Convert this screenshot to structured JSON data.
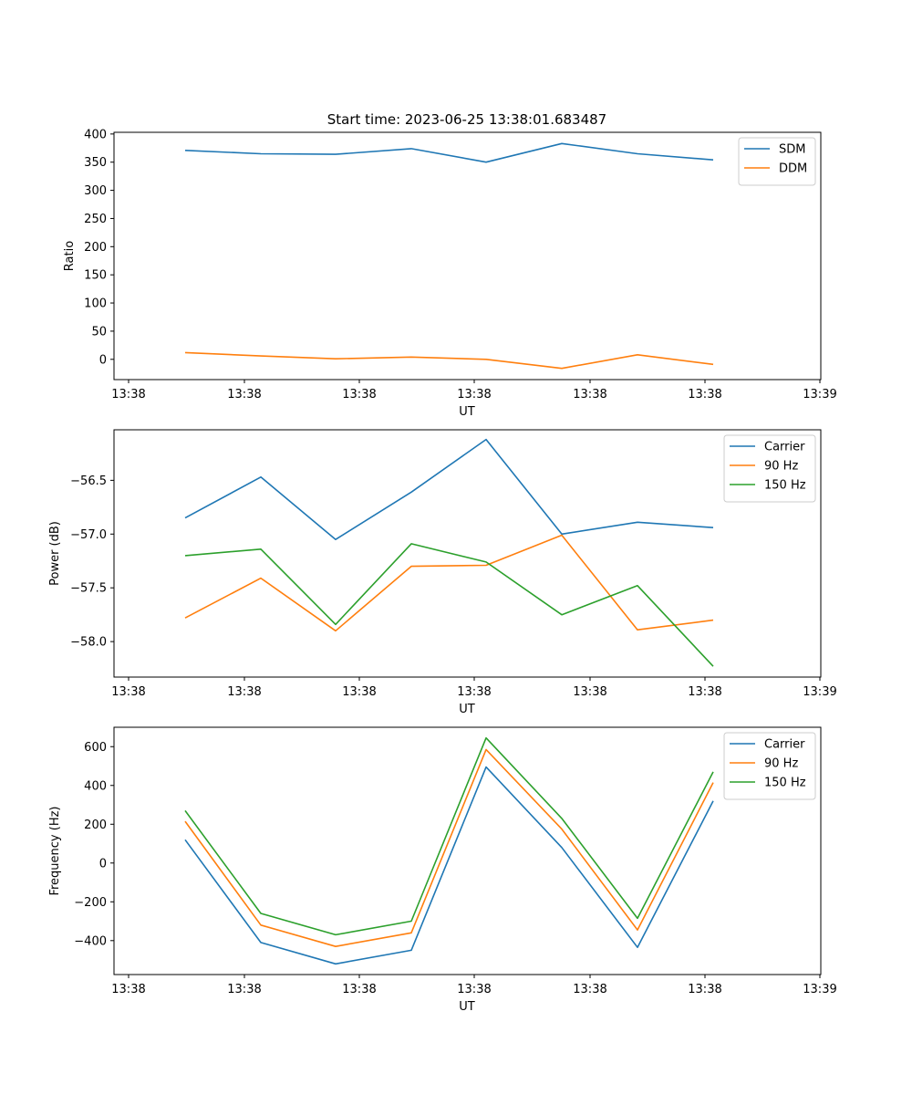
{
  "figure": {
    "suptitle": "Start time: 2023-06-25 13:38:01.683487"
  },
  "chart_data": [
    {
      "type": "line",
      "title": "",
      "xlabel": "UT",
      "ylabel": "Ratio",
      "x_tick_labels": [
        "13:38",
        "13:38",
        "13:38",
        "13:38",
        "13:38",
        "13:38",
        "13:39"
      ],
      "y_ticks": [
        0,
        50,
        100,
        150,
        200,
        250,
        300,
        350,
        400
      ],
      "y_tick_labels": [
        "0",
        "50",
        "100",
        "150",
        "200",
        "250",
        "300",
        "350",
        "400"
      ],
      "ylim": [
        -36,
        403
      ],
      "grid": false,
      "legend_position": "top-right",
      "series": [
        {
          "name": "SDM",
          "color": "#1f77b4",
          "values": [
            371,
            365,
            364,
            374,
            350,
            383,
            365,
            354
          ]
        },
        {
          "name": "DDM",
          "color": "#ff7f0e",
          "values": [
            12,
            6,
            1,
            4,
            0,
            -16,
            8,
            -9
          ]
        }
      ]
    },
    {
      "type": "line",
      "title": "",
      "xlabel": "UT",
      "ylabel": "Power (dB)",
      "x_tick_labels": [
        "13:38",
        "13:38",
        "13:38",
        "13:38",
        "13:38",
        "13:38",
        "13:39"
      ],
      "y_ticks": [
        -56.5,
        -57.0,
        -57.5,
        -58.0
      ],
      "y_tick_labels": [
        "−56.5",
        "−57.0",
        "−57.5",
        "−58.0"
      ],
      "ylim": [
        -58.33,
        -56.03
      ],
      "grid": false,
      "legend_position": "top-right",
      "series": [
        {
          "name": "Carrier",
          "color": "#1f77b4",
          "values": [
            -56.85,
            -56.47,
            -57.05,
            -56.61,
            -56.12,
            -57.0,
            -56.89,
            -56.94
          ]
        },
        {
          "name": "90 Hz",
          "color": "#ff7f0e",
          "values": [
            -57.78,
            -57.41,
            -57.9,
            -57.3,
            -57.29,
            -57.01,
            -57.89,
            -57.8
          ]
        },
        {
          "name": "150 Hz",
          "color": "#2ca02c",
          "values": [
            -57.2,
            -57.14,
            -57.84,
            -57.09,
            -57.26,
            -57.75,
            -57.48,
            -58.23
          ]
        }
      ]
    },
    {
      "type": "line",
      "title": "",
      "xlabel": "UT",
      "ylabel": "Frequency (Hz)",
      "x_tick_labels": [
        "13:38",
        "13:38",
        "13:38",
        "13:38",
        "13:38",
        "13:38",
        "13:39"
      ],
      "y_ticks": [
        600,
        400,
        200,
        0,
        -200,
        -400
      ],
      "y_tick_labels": [
        "600",
        "400",
        "200",
        "0",
        "−200",
        "−400"
      ],
      "ylim": [
        -575,
        700
      ],
      "grid": false,
      "legend_position": "top-right",
      "series": [
        {
          "name": "Carrier",
          "color": "#1f77b4",
          "values": [
            120,
            -410,
            -520,
            -450,
            495,
            80,
            -435,
            320
          ]
        },
        {
          "name": "90 Hz",
          "color": "#ff7f0e",
          "values": [
            215,
            -320,
            -430,
            -360,
            585,
            175,
            -345,
            415
          ]
        },
        {
          "name": "150 Hz",
          "color": "#2ca02c",
          "values": [
            270,
            -260,
            -370,
            -300,
            645,
            230,
            -285,
            470
          ]
        }
      ]
    }
  ]
}
